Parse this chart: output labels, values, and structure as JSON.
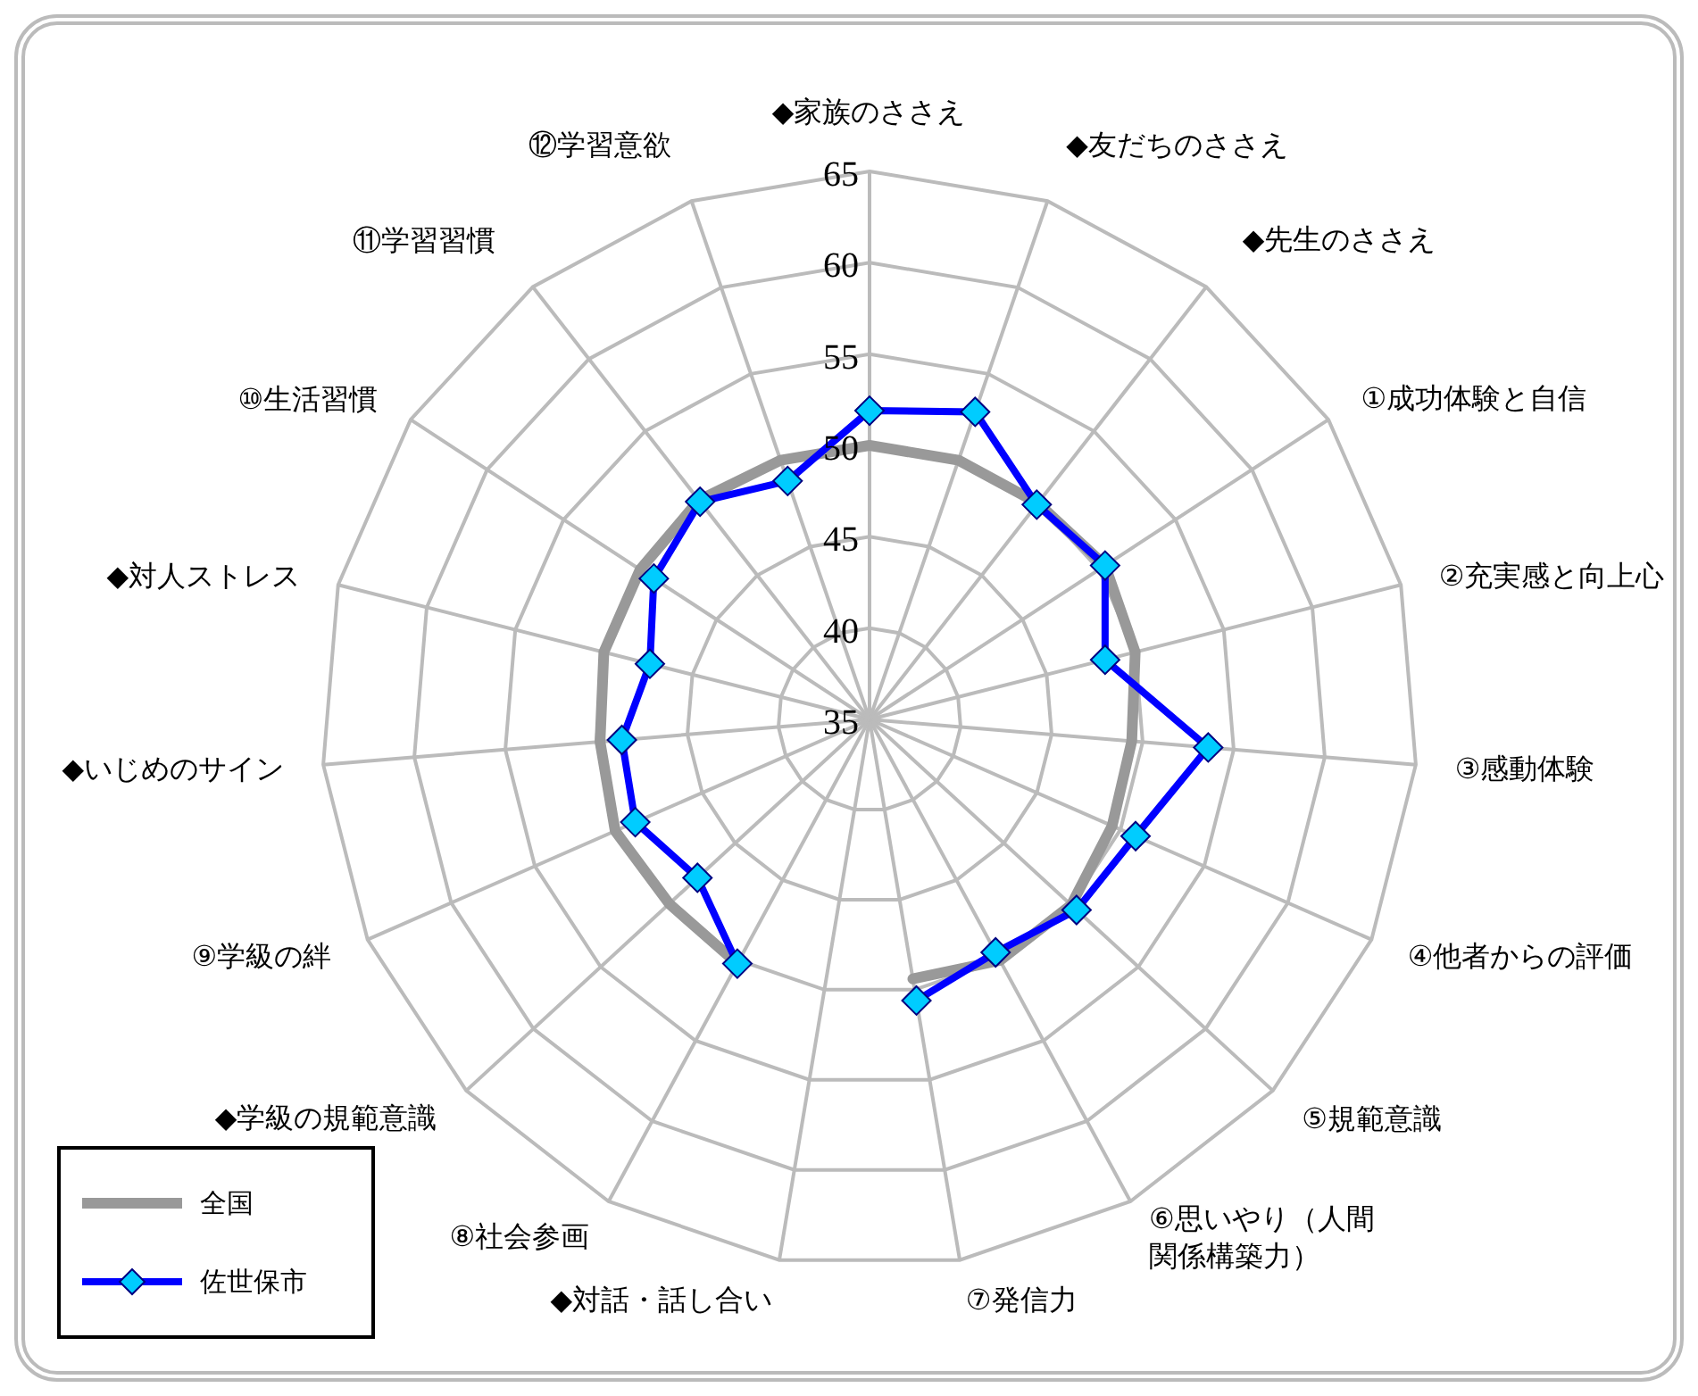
{
  "chart_data": {
    "type": "radar",
    "categories": [
      "◆家族のささえ",
      "◆友だちのささえ",
      "◆先生のささえ",
      "①成功体験と自信",
      "②充実感と向上心",
      "③感動体験",
      "④他者からの評価",
      "⑤規範意識",
      "⑥思いやり（人間関係構築力）",
      "⑦発信力",
      "◆対話・話し合い",
      "⑧社会参画",
      "◆学級の規範意識",
      "⑨学級の絆",
      "◆いじめのサイン",
      "◆対人ストレス",
      "⑩生活習慣",
      "⑪学習習慣",
      "⑫学習意欲"
    ],
    "series": [
      {
        "name": "全国",
        "color": "#999999",
        "marker": "none",
        "values": [
          50,
          50,
          50,
          50.4,
          50,
          49.4,
          49.5,
          50,
          50,
          49.4,
          null,
          50.2,
          49.9,
          50.2,
          49.8,
          50,
          50,
          50.2,
          50
        ]
      },
      {
        "name": "佐世保市",
        "color": "#0000ff",
        "marker": "diamond",
        "values": [
          51.9,
          52.8,
          49.9,
          50.4,
          48.3,
          53.6,
          50.9,
          50.4,
          49.5,
          50.6,
          null,
          50.2,
          47.8,
          49,
          48.6,
          47.4,
          49.1,
          50.1,
          48.8
        ]
      }
    ],
    "ylim": [
      35,
      65
    ],
    "yticks": [
      35,
      40,
      45,
      50,
      55,
      60,
      65
    ],
    "grid": true,
    "legend": "bottom left"
  }
}
